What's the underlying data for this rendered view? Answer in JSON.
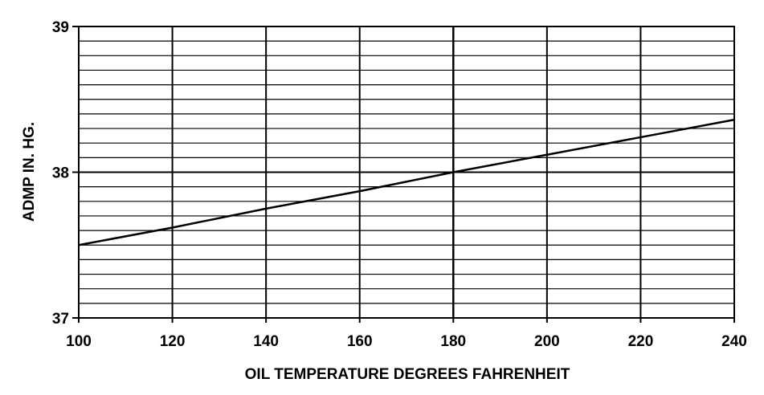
{
  "chart_data": {
    "type": "line",
    "title": "",
    "xlabel": "OIL TEMPERATURE DEGREES FAHRENHEIT",
    "ylabel": "ADMP IN. HG.",
    "xlim": [
      100,
      240
    ],
    "ylim": [
      37,
      39
    ],
    "x_ticks": [
      "100",
      "120",
      "140",
      "160",
      "180",
      "200",
      "220",
      "240"
    ],
    "y_ticks": [
      "37",
      "38",
      "39"
    ],
    "grid": true,
    "legend": "none",
    "series": [
      {
        "x": [
          100,
          120,
          140,
          160,
          180,
          200,
          220,
          240
        ],
        "y": [
          37.5,
          37.62,
          37.75,
          37.87,
          38.0,
          38.12,
          38.24,
          38.36
        ]
      }
    ],
    "colors": {
      "line": "#000000",
      "grid": "#000000",
      "background": "#ffffff"
    }
  }
}
